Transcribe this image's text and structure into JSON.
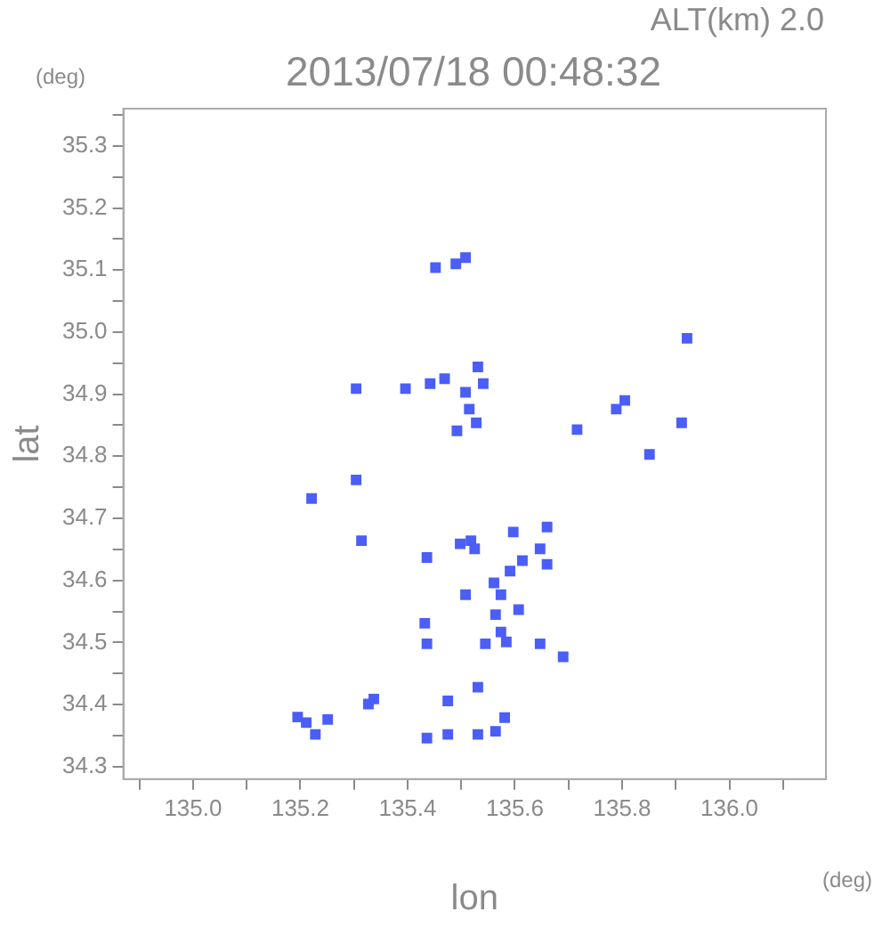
{
  "chart_data": {
    "type": "scatter",
    "title": "2013/07/18 00:48:32",
    "subtitle": "ALT(km) 2.0",
    "xlabel": "lon",
    "ylabel": "lat",
    "annotations": [
      "(deg)",
      "(deg)"
    ],
    "x": [
      135.452,
      135.49,
      135.508,
      135.396,
      135.442,
      135.469,
      135.508,
      135.531,
      135.541,
      135.304,
      135.805,
      135.789,
      135.921,
      135.911,
      135.851,
      135.716,
      135.515,
      135.528,
      135.492,
      135.221,
      135.314,
      135.304,
      135.66,
      135.647,
      135.66,
      135.525,
      135.436,
      135.561,
      135.591,
      135.614,
      135.574,
      135.607,
      135.564,
      135.574,
      135.584,
      135.545,
      135.432,
      135.436,
      135.647,
      135.69,
      135.518,
      135.498,
      135.597,
      135.508,
      135.531,
      135.337,
      135.327,
      135.475,
      135.581,
      135.436,
      135.475,
      135.531,
      135.564,
      135.251,
      135.211,
      135.195,
      135.228
    ],
    "series": [
      {
        "color": "#4b5ef7",
        "values": [
          35.104,
          35.11,
          35.12,
          34.909,
          34.917,
          34.925,
          34.903,
          34.944,
          34.917,
          34.909,
          34.89,
          34.876,
          34.99,
          34.854,
          34.803,
          34.843,
          34.876,
          34.854,
          34.841,
          34.732,
          34.664,
          34.762,
          34.686,
          34.651,
          34.626,
          34.651,
          34.637,
          34.596,
          34.615,
          34.632,
          34.577,
          34.553,
          34.545,
          34.517,
          34.501,
          34.498,
          34.531,
          34.498,
          34.498,
          34.477,
          34.664,
          34.659,
          34.678,
          34.577,
          34.428,
          34.409,
          34.401,
          34.406,
          34.379,
          34.346,
          34.352,
          34.352,
          34.357,
          34.376,
          34.371,
          34.38,
          34.352
        ]
      }
    ],
    "marker": "square",
    "grid": false,
    "xlim": [
      134.87,
      136.18
    ],
    "xticks": [
      {
        "value": 134.9,
        "label": null
      },
      {
        "value": 135.0,
        "label": "135.0"
      },
      {
        "value": 135.1,
        "label": null
      },
      135.2,
      {
        "value": 135.3,
        "label": null
      },
      135.4,
      {
        "value": 135.5,
        "label": null
      },
      135.6,
      {
        "value": 135.7,
        "label": null
      },
      135.8,
      {
        "value": 135.9,
        "label": null
      },
      {
        "value": 136.0,
        "label": "136.0"
      },
      {
        "value": 136.1,
        "label": null
      }
    ],
    "ylim": [
      34.28,
      35.36
    ],
    "yticks": [
      34.3,
      {
        "value": 34.35,
        "label": null
      },
      34.4,
      {
        "value": 34.45,
        "label": null
      },
      34.5,
      {
        "value": 34.55,
        "label": null
      },
      34.6,
      {
        "value": 34.65,
        "label": null
      },
      34.7,
      {
        "value": 34.75,
        "label": null
      },
      34.8,
      {
        "value": 34.85,
        "label": null
      },
      34.9,
      {
        "value": 34.95,
        "label": null
      },
      {
        "value": 35.0,
        "label": "35.0"
      },
      {
        "value": 35.05,
        "label": null
      },
      35.1,
      {
        "value": 35.15,
        "label": null
      },
      35.2,
      {
        "value": 35.25,
        "label": null
      },
      35.3,
      {
        "value": 35.35,
        "label": null
      }
    ]
  }
}
